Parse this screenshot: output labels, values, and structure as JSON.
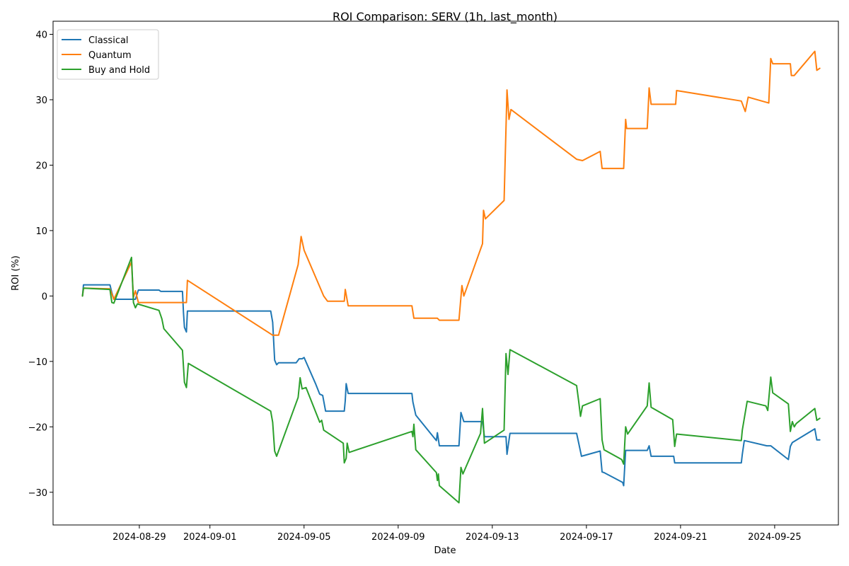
{
  "chart_data": {
    "type": "line",
    "title": "ROI Comparison: SERV (1h, last_month)",
    "xlabel": "Date",
    "ylabel": "ROI (%)",
    "xlim": [
      "2024-08-25T08:00",
      "2024-09-27T17:00"
    ],
    "ylim": [
      -35,
      42
    ],
    "x_ticks": [
      "2024-08-29",
      "2024-09-01",
      "2024-09-05",
      "2024-09-09",
      "2024-09-13",
      "2024-09-17",
      "2024-09-21",
      "2024-09-25"
    ],
    "y_ticks": [
      -30,
      -20,
      -10,
      0,
      10,
      20,
      30,
      40
    ],
    "grid": false,
    "legend": "top-left",
    "series": [
      {
        "name": "Classical",
        "color": "#1f77b4",
        "points": [
          [
            "2024-08-26T14:00",
            0.0
          ],
          [
            "2024-08-26T15:00",
            1.7
          ],
          [
            "2024-08-27T18:00",
            1.7
          ],
          [
            "2024-08-27T20:00",
            0.5
          ],
          [
            "2024-08-27T22:00",
            -0.5
          ],
          [
            "2024-08-28T20:00",
            -0.5
          ],
          [
            "2024-08-28T23:00",
            0.9
          ],
          [
            "2024-08-29T20:00",
            0.9
          ],
          [
            "2024-08-29T22:00",
            0.7
          ],
          [
            "2024-08-30T20:00",
            0.7
          ],
          [
            "2024-08-30T21:00",
            -2.5
          ],
          [
            "2024-08-30T22:00",
            -4.8
          ],
          [
            "2024-08-31T00:00",
            -5.5
          ],
          [
            "2024-08-31T01:00",
            -2.3
          ],
          [
            "2024-09-03T14:00",
            -2.3
          ],
          [
            "2024-09-03T16:00",
            -4.0
          ],
          [
            "2024-09-03T18:00",
            -9.8
          ],
          [
            "2024-09-03T20:00",
            -10.5
          ],
          [
            "2024-09-03T22:00",
            -10.2
          ],
          [
            "2024-09-04T16:00",
            -10.2
          ],
          [
            "2024-09-04T19:00",
            -9.6
          ],
          [
            "2024-09-04T22:00",
            -9.6
          ],
          [
            "2024-09-05T00:00",
            -9.4
          ],
          [
            "2024-09-05T12:00",
            -13.5
          ],
          [
            "2024-09-05T16:00",
            -15.0
          ],
          [
            "2024-09-05T19:00",
            -15.2
          ],
          [
            "2024-09-05T22:00",
            -17.6
          ],
          [
            "2024-09-06T17:00",
            -17.6
          ],
          [
            "2024-09-06T18:00",
            -16.0
          ],
          [
            "2024-09-06T19:00",
            -13.4
          ],
          [
            "2024-09-06T21:00",
            -14.9
          ],
          [
            "2024-09-09T14:00",
            -14.9
          ],
          [
            "2024-09-09T15:00",
            -16.2
          ],
          [
            "2024-09-09T18:00",
            -18.2
          ],
          [
            "2024-09-10T15:00",
            -22.1
          ],
          [
            "2024-09-10T16:00",
            -20.9
          ],
          [
            "2024-09-10T18:00",
            -22.9
          ],
          [
            "2024-09-11T14:00",
            -22.9
          ],
          [
            "2024-09-11T16:00",
            -17.8
          ],
          [
            "2024-09-11T19:00",
            -19.2
          ],
          [
            "2024-09-12T14:00",
            -19.2
          ],
          [
            "2024-09-12T16:00",
            -21.5
          ],
          [
            "2024-09-13T14:00",
            -21.5
          ],
          [
            "2024-09-13T15:00",
            -24.2
          ],
          [
            "2024-09-13T18:00",
            -21.0
          ],
          [
            "2024-09-16T14:00",
            -21.0
          ],
          [
            "2024-09-16T16:00",
            -22.4
          ],
          [
            "2024-09-16T19:00",
            -24.5
          ],
          [
            "2024-09-17T14:00",
            -23.7
          ],
          [
            "2024-09-17T16:00",
            -26.9
          ],
          [
            "2024-09-17T18:00",
            -27.0
          ],
          [
            "2024-09-18T13:00",
            -28.5
          ],
          [
            "2024-09-18T14:00",
            -29.0
          ],
          [
            "2024-09-18T16:00",
            -23.6
          ],
          [
            "2024-09-19T14:00",
            -23.6
          ],
          [
            "2024-09-19T16:00",
            -22.9
          ],
          [
            "2024-09-19T18:00",
            -24.5
          ],
          [
            "2024-09-20T17:00",
            -24.5
          ],
          [
            "2024-09-20T18:00",
            -25.5
          ],
          [
            "2024-09-23T14:00",
            -25.5
          ],
          [
            "2024-09-23T15:00",
            -24.2
          ],
          [
            "2024-09-23T17:00",
            -22.1
          ],
          [
            "2024-09-24T16:00",
            -22.9
          ],
          [
            "2024-09-24T20:00",
            -22.9
          ],
          [
            "2024-09-25T14:00",
            -25.0
          ],
          [
            "2024-09-25T16:00",
            -23.0
          ],
          [
            "2024-09-25T18:00",
            -22.4
          ],
          [
            "2024-09-26T17:00",
            -20.3
          ],
          [
            "2024-09-26T19:00",
            -22.0
          ],
          [
            "2024-09-26T22:00",
            -22.0
          ]
        ]
      },
      {
        "name": "Quantum",
        "color": "#ff7f0e",
        "points": [
          [
            "2024-08-26T14:00",
            0.0
          ],
          [
            "2024-08-26T15:00",
            1.2
          ],
          [
            "2024-08-27T18:00",
            1.1
          ],
          [
            "2024-08-27T22:00",
            -0.5
          ],
          [
            "2024-08-28T16:00",
            5.2
          ],
          [
            "2024-08-28T18:00",
            -0.2
          ],
          [
            "2024-08-28T20:00",
            0.8
          ],
          [
            "2024-08-28T23:00",
            -1.0
          ],
          [
            "2024-08-31T00:00",
            -1.0
          ],
          [
            "2024-08-31T01:00",
            2.4
          ],
          [
            "2024-09-03T16:00",
            -6.0
          ],
          [
            "2024-09-03T22:00",
            -6.0
          ],
          [
            "2024-09-04T18:00",
            4.8
          ],
          [
            "2024-09-04T21:00",
            9.1
          ],
          [
            "2024-09-05T00:00",
            7.0
          ],
          [
            "2024-09-05T20:00",
            0.0
          ],
          [
            "2024-09-06T00:00",
            -0.8
          ],
          [
            "2024-09-06T17:00",
            -0.8
          ],
          [
            "2024-09-06T18:00",
            1.0
          ],
          [
            "2024-09-06T21:00",
            -1.5
          ],
          [
            "2024-09-09T14:00",
            -1.5
          ],
          [
            "2024-09-09T16:00",
            -3.4
          ],
          [
            "2024-09-10T16:00",
            -3.4
          ],
          [
            "2024-09-10T18:00",
            -3.7
          ],
          [
            "2024-09-11T14:00",
            -3.7
          ],
          [
            "2024-09-11T17:00",
            1.6
          ],
          [
            "2024-09-11T19:00",
            0.0
          ],
          [
            "2024-09-12T14:00",
            8.0
          ],
          [
            "2024-09-12T15:00",
            13.1
          ],
          [
            "2024-09-12T17:00",
            11.8
          ],
          [
            "2024-09-13T12:00",
            14.6
          ],
          [
            "2024-09-13T15:00",
            31.5
          ],
          [
            "2024-09-13T17:00",
            27.0
          ],
          [
            "2024-09-13T19:00",
            28.5
          ],
          [
            "2024-09-16T14:00",
            20.9
          ],
          [
            "2024-09-16T20:00",
            20.7
          ],
          [
            "2024-09-17T14:00",
            22.1
          ],
          [
            "2024-09-17T16:00",
            19.5
          ],
          [
            "2024-09-18T14:00",
            19.5
          ],
          [
            "2024-09-18T16:00",
            27.0
          ],
          [
            "2024-09-18T17:00",
            25.6
          ],
          [
            "2024-09-19T14:00",
            25.6
          ],
          [
            "2024-09-19T16:00",
            31.8
          ],
          [
            "2024-09-19T18:00",
            29.3
          ],
          [
            "2024-09-20T19:00",
            29.3
          ],
          [
            "2024-09-20T20:00",
            31.4
          ],
          [
            "2024-09-23T14:00",
            29.8
          ],
          [
            "2024-09-23T18:00",
            28.2
          ],
          [
            "2024-09-23T21:00",
            30.4
          ],
          [
            "2024-09-24T18:00",
            29.5
          ],
          [
            "2024-09-24T20:00",
            36.3
          ],
          [
            "2024-09-24T22:00",
            35.5
          ],
          [
            "2024-09-25T16:00",
            35.5
          ],
          [
            "2024-09-25T17:00",
            33.7
          ],
          [
            "2024-09-25T20:00",
            33.7
          ],
          [
            "2024-09-26T17:00",
            37.4
          ],
          [
            "2024-09-26T19:00",
            34.5
          ],
          [
            "2024-09-26T22:00",
            34.8
          ]
        ]
      },
      {
        "name": "Buy and Hold",
        "color": "#2ca02c",
        "points": [
          [
            "2024-08-26T14:00",
            0.0
          ],
          [
            "2024-08-26T15:00",
            1.2
          ],
          [
            "2024-08-27T18:00",
            1.0
          ],
          [
            "2024-08-27T20:00",
            -1.0
          ],
          [
            "2024-08-27T22:00",
            -1.1
          ],
          [
            "2024-08-28T16:00",
            5.9
          ],
          [
            "2024-08-28T18:00",
            -1.0
          ],
          [
            "2024-08-28T20:00",
            -1.8
          ],
          [
            "2024-08-28T22:00",
            -1.2
          ],
          [
            "2024-08-29T20:00",
            -2.2
          ],
          [
            "2024-08-29T23:00",
            -3.5
          ],
          [
            "2024-08-30T01:00",
            -5.0
          ],
          [
            "2024-08-30T20:00",
            -8.3
          ],
          [
            "2024-08-30T22:00",
            -13.2
          ],
          [
            "2024-08-31T00:00",
            -14.0
          ],
          [
            "2024-08-31T02:00",
            -10.3
          ],
          [
            "2024-09-03T14:00",
            -17.6
          ],
          [
            "2024-09-03T16:00",
            -19.3
          ],
          [
            "2024-09-03T18:00",
            -23.7
          ],
          [
            "2024-09-03T20:00",
            -24.5
          ],
          [
            "2024-09-04T18:00",
            -15.5
          ],
          [
            "2024-09-04T20:00",
            -12.5
          ],
          [
            "2024-09-04T22:00",
            -14.2
          ],
          [
            "2024-09-05T02:00",
            -14.0
          ],
          [
            "2024-09-05T16:00",
            -19.3
          ],
          [
            "2024-09-05T18:00",
            -19.0
          ],
          [
            "2024-09-05T20:00",
            -20.5
          ],
          [
            "2024-09-06T16:00",
            -22.5
          ],
          [
            "2024-09-06T17:00",
            -25.5
          ],
          [
            "2024-09-06T19:00",
            -24.8
          ],
          [
            "2024-09-06T20:00",
            -22.5
          ],
          [
            "2024-09-06T22:00",
            -23.9
          ],
          [
            "2024-09-09T14:00",
            -20.7
          ],
          [
            "2024-09-09T15:00",
            -21.5
          ],
          [
            "2024-09-09T16:00",
            -19.6
          ],
          [
            "2024-09-09T18:00",
            -23.5
          ],
          [
            "2024-09-10T15:00",
            -27.0
          ],
          [
            "2024-09-10T16:00",
            -28.2
          ],
          [
            "2024-09-10T17:00",
            -27.2
          ],
          [
            "2024-09-10T18:00",
            -29.0
          ],
          [
            "2024-09-11T14:00",
            -31.6
          ],
          [
            "2024-09-11T16:00",
            -26.2
          ],
          [
            "2024-09-11T18:00",
            -27.2
          ],
          [
            "2024-09-12T12:00",
            -21.0
          ],
          [
            "2024-09-12T14:00",
            -17.2
          ],
          [
            "2024-09-12T16:00",
            -22.5
          ],
          [
            "2024-09-13T12:00",
            -20.5
          ],
          [
            "2024-09-13T14:00",
            -8.8
          ],
          [
            "2024-09-13T16:00",
            -12.0
          ],
          [
            "2024-09-13T18:00",
            -8.2
          ],
          [
            "2024-09-16T14:00",
            -13.7
          ],
          [
            "2024-09-16T16:00",
            -16.0
          ],
          [
            "2024-09-16T18:00",
            -18.4
          ],
          [
            "2024-09-16T20:00",
            -16.8
          ],
          [
            "2024-09-17T14:00",
            -15.7
          ],
          [
            "2024-09-17T16:00",
            -22.0
          ],
          [
            "2024-09-17T18:00",
            -23.5
          ],
          [
            "2024-09-18T12:00",
            -25.0
          ],
          [
            "2024-09-18T14:00",
            -25.7
          ],
          [
            "2024-09-18T16:00",
            -20.0
          ],
          [
            "2024-09-18T18:00",
            -21.1
          ],
          [
            "2024-09-19T14:00",
            -16.8
          ],
          [
            "2024-09-19T16:00",
            -13.3
          ],
          [
            "2024-09-19T18:00",
            -17.0
          ],
          [
            "2024-09-20T16:00",
            -18.9
          ],
          [
            "2024-09-20T18:00",
            -23.0
          ],
          [
            "2024-09-20T20:00",
            -21.1
          ],
          [
            "2024-09-23T14:00",
            -22.1
          ],
          [
            "2024-09-23T15:00",
            -20.5
          ],
          [
            "2024-09-23T17:00",
            -18.7
          ],
          [
            "2024-09-23T20:00",
            -16.1
          ],
          [
            "2024-09-24T15:00",
            -16.8
          ],
          [
            "2024-09-24T17:00",
            -17.5
          ],
          [
            "2024-09-24T20:00",
            -12.4
          ],
          [
            "2024-09-24T22:00",
            -14.8
          ],
          [
            "2024-09-25T14:00",
            -16.5
          ],
          [
            "2024-09-25T16:00",
            -20.7
          ],
          [
            "2024-09-25T18:00",
            -19.2
          ],
          [
            "2024-09-25T20:00",
            -20.0
          ],
          [
            "2024-09-25T22:00",
            -19.5
          ],
          [
            "2024-09-26T17:00",
            -17.2
          ],
          [
            "2024-09-26T19:00",
            -19.0
          ],
          [
            "2024-09-26T22:00",
            -18.7
          ]
        ]
      }
    ]
  }
}
